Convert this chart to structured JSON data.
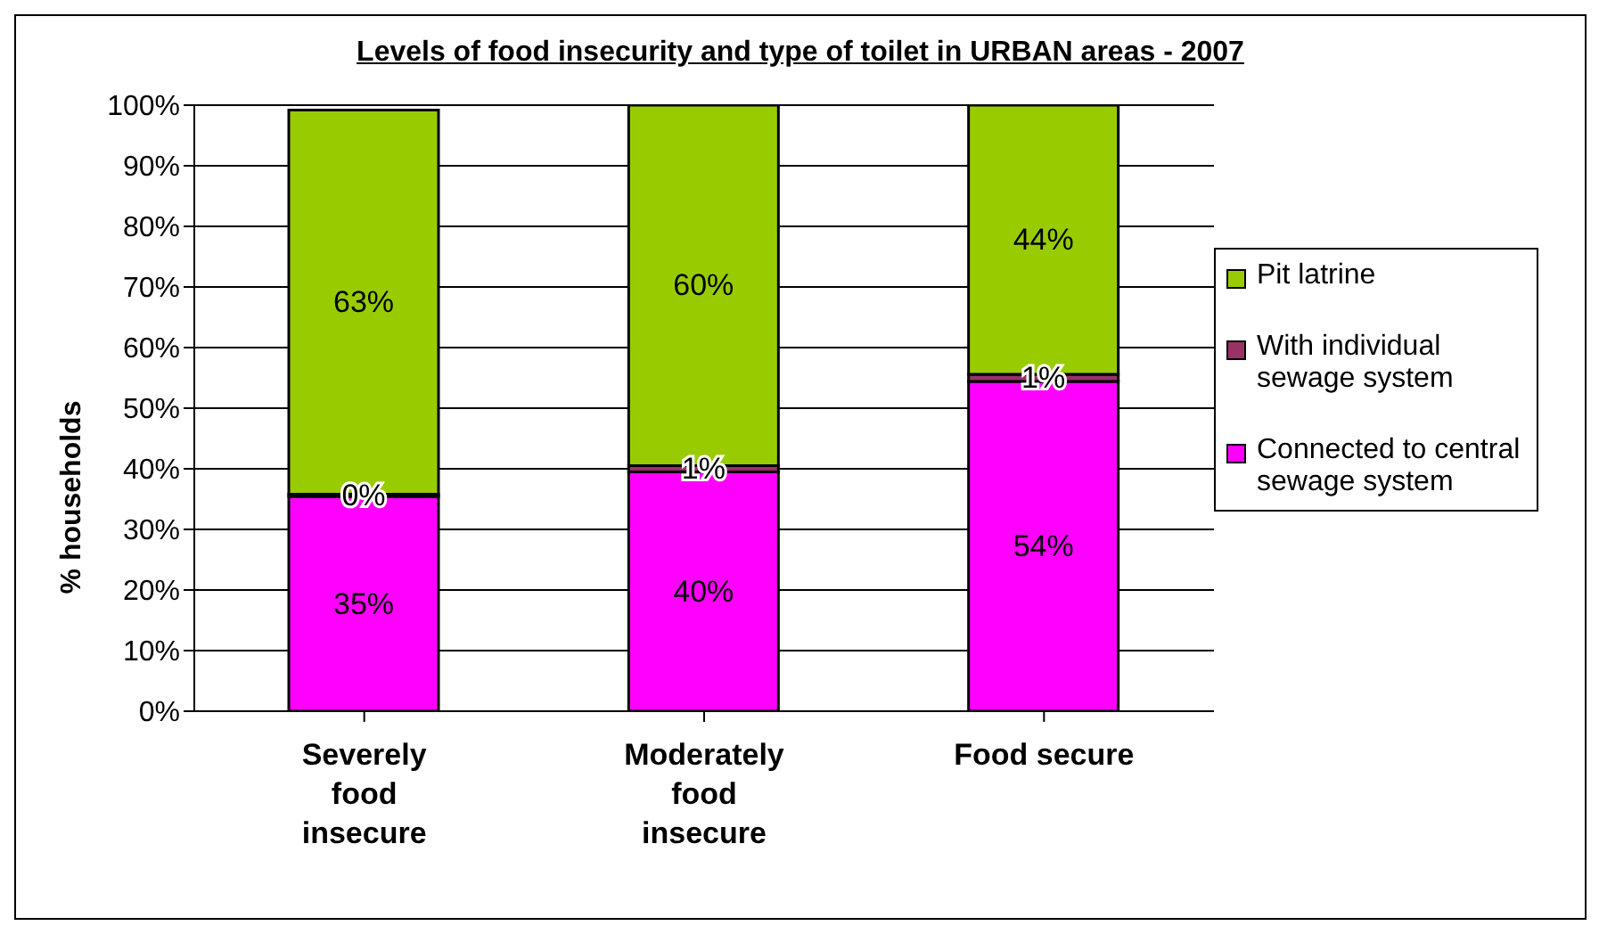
{
  "chart_data": {
    "type": "bar",
    "title": "Levels of food insecurity and type of toilet in URBAN areas - 2007",
    "ylabel": "% households",
    "categories": [
      "Severely food insecure",
      "Moderately food insecure",
      "Food secure"
    ],
    "stacked": true,
    "ylim": [
      0,
      100
    ],
    "yticks": [
      {
        "value": 0,
        "label": "0%"
      },
      {
        "value": 10,
        "label": "10%"
      },
      {
        "value": 20,
        "label": "20%"
      },
      {
        "value": 30,
        "label": "30%"
      },
      {
        "value": 40,
        "label": "40%"
      },
      {
        "value": 50,
        "label": "50%"
      },
      {
        "value": 60,
        "label": "60%"
      },
      {
        "value": 70,
        "label": "70%"
      },
      {
        "value": 80,
        "label": "80%"
      },
      {
        "value": 90,
        "label": "90%"
      },
      {
        "value": 100,
        "label": "100%"
      }
    ],
    "grid": "y",
    "legend": "right",
    "series": [
      {
        "name": "Connected to central sewage system",
        "color": "#ff00ff",
        "values": [
          35.4,
          39.5,
          54.4
        ],
        "value_labels": [
          "35%",
          "40%",
          "54%"
        ]
      },
      {
        "name": "With individual sewage system",
        "color": "#993366",
        "values": [
          0.4,
          1,
          1.2
        ],
        "value_labels": [
          "0%",
          "1%",
          "1%"
        ]
      },
      {
        "name": "Pit latrine",
        "color": "#99cc00",
        "values": [
          63.4,
          59.5,
          44.4
        ],
        "value_labels": [
          "63%",
          "60%",
          "44%"
        ]
      }
    ]
  }
}
